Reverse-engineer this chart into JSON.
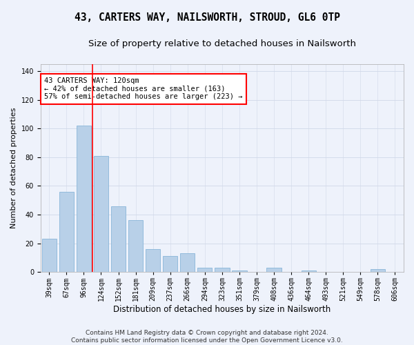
{
  "title": "43, CARTERS WAY, NAILSWORTH, STROUD, GL6 0TP",
  "subtitle": "Size of property relative to detached houses in Nailsworth",
  "xlabel": "Distribution of detached houses by size in Nailsworth",
  "ylabel": "Number of detached properties",
  "bar_color": "#b8d0e8",
  "bar_edge_color": "#7aadd4",
  "grid_color": "#d0d8e8",
  "bg_color": "#eef2fb",
  "vline_color": "red",
  "categories": [
    "39sqm",
    "67sqm",
    "96sqm",
    "124sqm",
    "152sqm",
    "181sqm",
    "209sqm",
    "237sqm",
    "266sqm",
    "294sqm",
    "323sqm",
    "351sqm",
    "379sqm",
    "408sqm",
    "436sqm",
    "464sqm",
    "493sqm",
    "521sqm",
    "549sqm",
    "578sqm",
    "606sqm"
  ],
  "values": [
    23,
    56,
    102,
    81,
    46,
    36,
    16,
    11,
    13,
    3,
    3,
    1,
    0,
    3,
    0,
    1,
    0,
    0,
    0,
    2,
    0
  ],
  "vline_index": 3,
  "ylim": [
    0,
    145
  ],
  "yticks": [
    0,
    20,
    40,
    60,
    80,
    100,
    120,
    140
  ],
  "annotation_text": "43 CARTERS WAY: 120sqm\n← 42% of detached houses are smaller (163)\n57% of semi-detached houses are larger (223) →",
  "annotation_box_color": "white",
  "annotation_box_edge": "red",
  "footer_line1": "Contains HM Land Registry data © Crown copyright and database right 2024.",
  "footer_line2": "Contains public sector information licensed under the Open Government Licence v3.0.",
  "title_fontsize": 10.5,
  "subtitle_fontsize": 9.5,
  "xlabel_fontsize": 8.5,
  "ylabel_fontsize": 8,
  "tick_fontsize": 7,
  "annotation_fontsize": 7.5,
  "footer_fontsize": 6.5
}
